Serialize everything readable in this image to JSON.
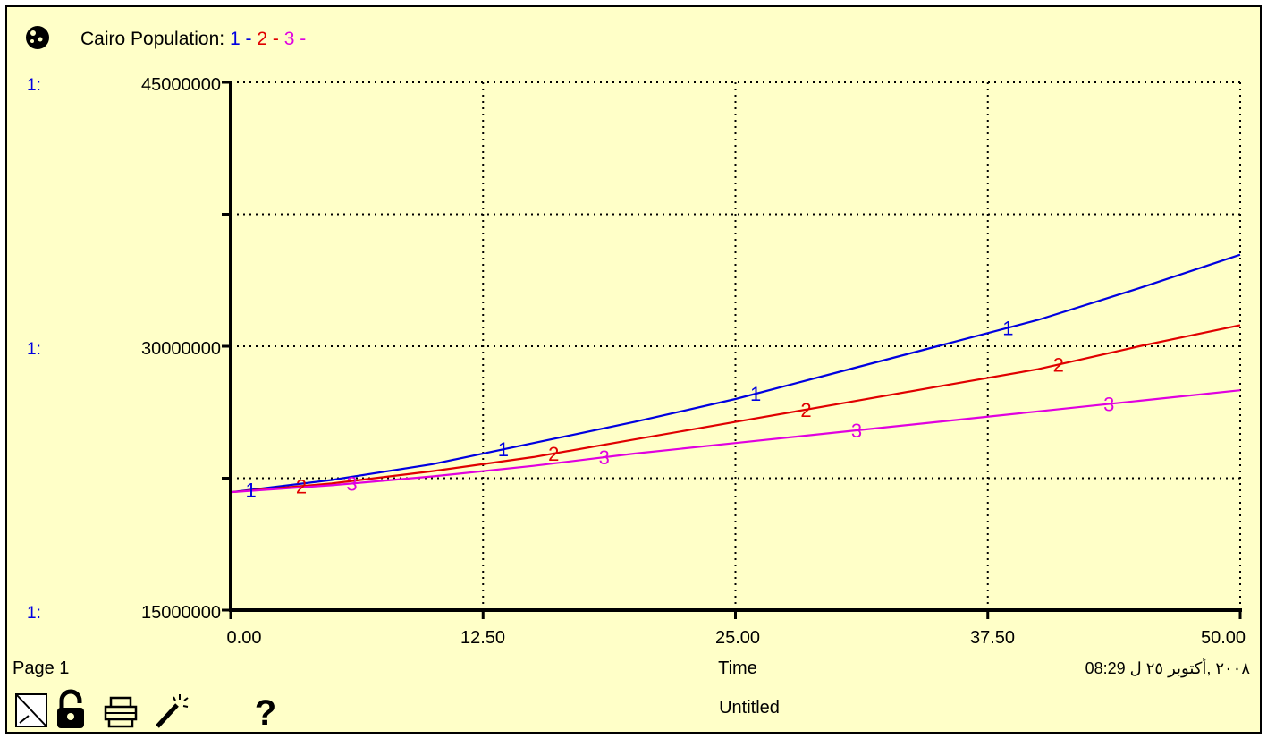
{
  "header": {
    "title_prefix": "Cairo Population:",
    "series_markers": [
      "1",
      "2",
      "3"
    ],
    "separator": "-"
  },
  "y_axis_labels": {
    "scale_prefix": "1:",
    "ticks": [
      "45000000",
      "30000000",
      "15000000"
    ]
  },
  "x_axis": {
    "ticks": [
      "0.00",
      "12.50",
      "25.00",
      "37.50",
      "50.00"
    ],
    "label": "Time"
  },
  "footer": {
    "page_label": "Page 1",
    "timestamp": "08:29 ٢٠٠٨ ,أكتوبر ٢٥ ل",
    "document_name": "Untitled"
  },
  "toolbar": {
    "icons": [
      "graph-pad-icon",
      "lock-icon",
      "print-icon",
      "magic-wand-icon",
      "help-icon"
    ],
    "help_label": "?"
  },
  "colors": {
    "background": "#ffffc8",
    "series1": "#0000e0",
    "series2": "#e00000",
    "series3": "#e000e0"
  },
  "chart_data": {
    "type": "line",
    "title": "Cairo Population:",
    "xlabel": "Time",
    "ylabel": "",
    "xlim": [
      0,
      50
    ],
    "ylim": [
      15000000,
      45000000
    ],
    "x_ticks": [
      0,
      12.5,
      25,
      37.5,
      50
    ],
    "y_ticks": [
      15000000,
      22500000,
      30000000,
      37500000,
      45000000
    ],
    "grid": true,
    "x": [
      0,
      5,
      10,
      15,
      20,
      25,
      30,
      35,
      40,
      45,
      50
    ],
    "series": [
      {
        "name": "1",
        "color": "#0000e0",
        "label_at_x": [
          1,
          13.5,
          26,
          38.5
        ],
        "values": [
          21700000,
          22400000,
          23300000,
          24500000,
          25700000,
          27000000,
          28500000,
          30000000,
          31500000,
          33300000,
          35200000
        ]
      },
      {
        "name": "2",
        "color": "#e00000",
        "label_at_x": [
          3.5,
          16,
          28.5,
          41
        ],
        "values": [
          21700000,
          22200000,
          22900000,
          23700000,
          24700000,
          25700000,
          26700000,
          27700000,
          28700000,
          30000000,
          31200000
        ]
      },
      {
        "name": "3",
        "color": "#e000e0",
        "label_at_x": [
          6,
          18.5,
          31,
          43.5
        ],
        "values": [
          21700000,
          22100000,
          22600000,
          23200000,
          23900000,
          24500000,
          25100000,
          25700000,
          26300000,
          26900000,
          27500000
        ]
      }
    ]
  }
}
